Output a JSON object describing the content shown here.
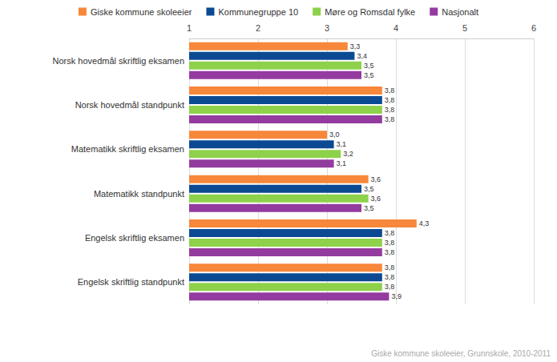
{
  "chart_data": {
    "type": "bar",
    "orientation": "horizontal",
    "annotation": "Giske kommune skoleeier, Grunnskole, 2010-2011",
    "categories": [
      "Norsk hovedmål skriftlig eksamen",
      "Norsk hovedmål standpunkt",
      "Matematikk skriftlig eksamen",
      "Matematikk standpunkt",
      "Engelsk skriftlig eksamen",
      "Engelsk skriftlig standpunkt"
    ],
    "series": [
      {
        "name": "Giske kommune skoleeier",
        "color": "#f7873a",
        "values": [
          3.3,
          3.8,
          3.0,
          3.6,
          4.3,
          3.8
        ],
        "value_labels": [
          "3,3",
          "3,8",
          "3,0",
          "3,6",
          "4,3",
          "3,8"
        ]
      },
      {
        "name": "Kommunegruppe 10",
        "color": "#0b4a93",
        "values": [
          3.4,
          3.8,
          3.1,
          3.5,
          3.8,
          3.8
        ],
        "value_labels": [
          "3,4",
          "3,8",
          "3,1",
          "3,5",
          "3,8",
          "3,8"
        ]
      },
      {
        "name": "Møre og Romsdal fylke",
        "color": "#8ed14b",
        "values": [
          3.5,
          3.8,
          3.2,
          3.6,
          3.8,
          3.8
        ],
        "value_labels": [
          "3,5",
          "3,8",
          "3,2",
          "3,6",
          "3,8",
          "3,8"
        ]
      },
      {
        "name": "Nasjonalt",
        "color": "#943b9f",
        "values": [
          3.5,
          3.8,
          3.1,
          3.5,
          3.8,
          3.9
        ],
        "value_labels": [
          "3,5",
          "3,8",
          "3,1",
          "3,5",
          "3,8",
          "3,9"
        ]
      }
    ],
    "xlim": [
      1,
      6
    ],
    "xticks": [
      1,
      2,
      3,
      4,
      5,
      6
    ],
    "grid": true,
    "legend": "top",
    "data_labels": true
  }
}
